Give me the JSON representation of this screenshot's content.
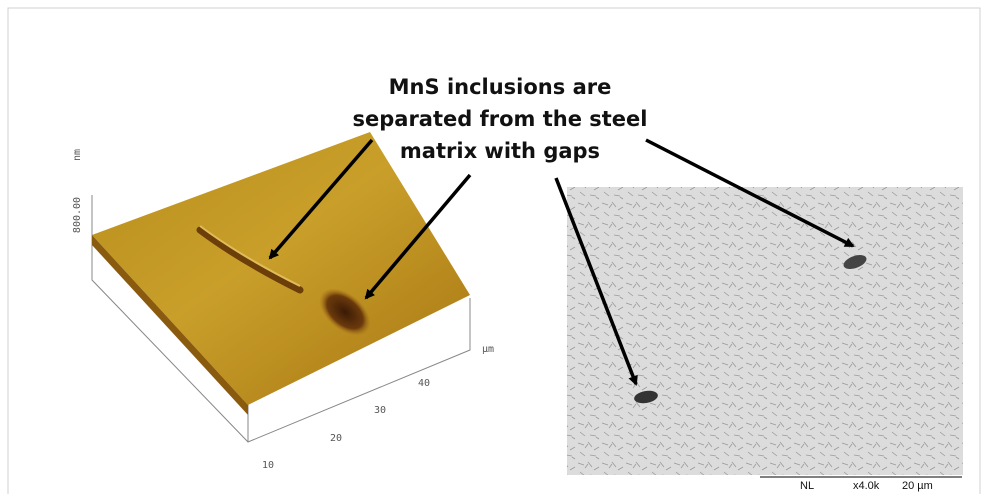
{
  "annotation": {
    "lines": [
      "MnS inclusions are",
      "separated from the steel",
      "matrix with gaps"
    ]
  },
  "afm": {
    "z_label": "800.00",
    "z_unit": "nm",
    "x_unit": "µm",
    "x_ticks": [
      "10",
      "20",
      "30",
      "40"
    ]
  },
  "sem": {
    "scale_labels": [
      "NL",
      "x4.0k",
      "20 µm"
    ]
  }
}
